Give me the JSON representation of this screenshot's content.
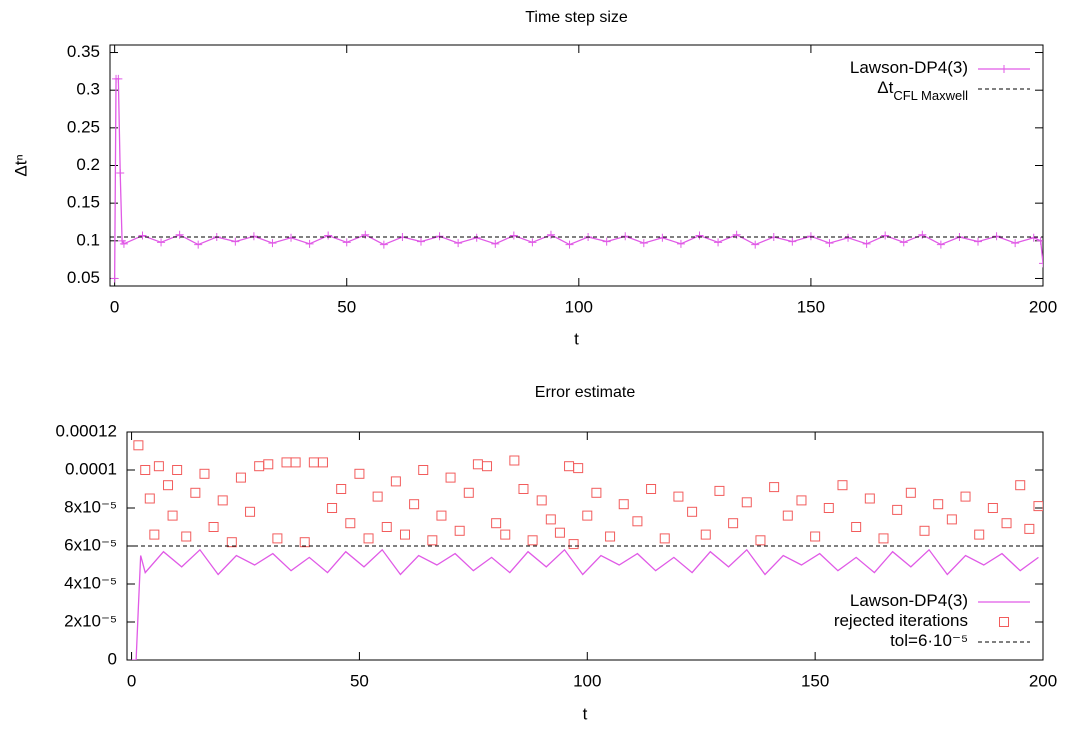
{
  "chart_data": [
    {
      "type": "line",
      "title": "Time step size",
      "xlabel": "t",
      "ylabel": "Δtⁿ",
      "xlim": [
        -1,
        200
      ],
      "ylim": [
        0.04,
        0.36
      ],
      "xticks": [
        0,
        50,
        100,
        150,
        200
      ],
      "yticks": [
        0.05,
        0.1,
        0.15,
        0.2,
        0.25,
        0.3,
        0.35
      ],
      "legend": "top-right",
      "series": [
        {
          "name": "Lawson-DP4(3)",
          "kind": "line",
          "color": "#e05ae6",
          "x": [
            0,
            0.3,
            0.8,
            1.2,
            1.6,
            2,
            6,
            10,
            14,
            18,
            22,
            26,
            30,
            34,
            38,
            42,
            46,
            50,
            54,
            58,
            62,
            66,
            70,
            74,
            78,
            82,
            86,
            90,
            94,
            98,
            102,
            106,
            110,
            114,
            118,
            122,
            126,
            130,
            134,
            138,
            142,
            146,
            150,
            154,
            158,
            162,
            166,
            170,
            174,
            178,
            182,
            186,
            190,
            194,
            198,
            199.5,
            200
          ],
          "values": [
            0.05,
            0.315,
            0.315,
            0.19,
            0.1,
            0.096,
            0.107,
            0.098,
            0.108,
            0.095,
            0.105,
            0.099,
            0.106,
            0.097,
            0.104,
            0.096,
            0.107,
            0.098,
            0.108,
            0.095,
            0.105,
            0.099,
            0.106,
            0.097,
            0.104,
            0.096,
            0.107,
            0.098,
            0.108,
            0.095,
            0.105,
            0.099,
            0.106,
            0.097,
            0.104,
            0.096,
            0.107,
            0.098,
            0.108,
            0.095,
            0.105,
            0.099,
            0.106,
            0.097,
            0.104,
            0.096,
            0.107,
            0.098,
            0.108,
            0.095,
            0.105,
            0.099,
            0.106,
            0.097,
            0.104,
            0.1,
            0.07
          ]
        },
        {
          "name": "Δt",
          "subscript": "CFL Maxwell",
          "kind": "hline",
          "color": "#000000",
          "value": 0.105
        }
      ]
    },
    {
      "type": "line",
      "title": "Error estimate",
      "xlabel": "t",
      "xlim": [
        -1,
        200
      ],
      "ylim": [
        0,
        0.00012
      ],
      "xticks": [
        0,
        50,
        100,
        150,
        200
      ],
      "yticks": [
        0,
        {
          "value": 2e-05,
          "label": "2x10⁻⁵"
        },
        {
          "value": 4e-05,
          "label": "4x10⁻⁵"
        },
        {
          "value": 6e-05,
          "label": "6x10⁻⁵"
        },
        {
          "value": 8e-05,
          "label": "8x10⁻⁵"
        },
        0.0001,
        0.00012
      ],
      "legend": "bottom-right",
      "series": [
        {
          "name": "Lawson-DP4(3)",
          "kind": "line",
          "color": "#e05ae6",
          "x": [
            0,
            1,
            1.5,
            2,
            3,
            7,
            11,
            15,
            19,
            23,
            27,
            31,
            35,
            39,
            43,
            47,
            51,
            55,
            59,
            63,
            67,
            71,
            75,
            79,
            83,
            87,
            91,
            95,
            99,
            103,
            107,
            111,
            115,
            119,
            123,
            127,
            131,
            135,
            139,
            143,
            147,
            151,
            155,
            159,
            163,
            167,
            171,
            175,
            179,
            183,
            187,
            191,
            195,
            199
          ],
          "values": [
            0,
            0,
            2.8e-05,
            5.5e-05,
            4.6e-05,
            5.7e-05,
            4.9e-05,
            5.8e-05,
            4.5e-05,
            5.5e-05,
            5e-05,
            5.6e-05,
            4.7e-05,
            5.4e-05,
            4.6e-05,
            5.7e-05,
            4.9e-05,
            5.8e-05,
            4.5e-05,
            5.5e-05,
            5e-05,
            5.6e-05,
            4.7e-05,
            5.4e-05,
            4.6e-05,
            5.7e-05,
            4.9e-05,
            5.8e-05,
            4.5e-05,
            5.5e-05,
            5e-05,
            5.6e-05,
            4.7e-05,
            5.4e-05,
            4.6e-05,
            5.7e-05,
            4.9e-05,
            5.8e-05,
            4.5e-05,
            5.5e-05,
            5e-05,
            5.6e-05,
            4.7e-05,
            5.4e-05,
            4.6e-05,
            5.7e-05,
            4.9e-05,
            5.8e-05,
            4.5e-05,
            5.5e-05,
            5e-05,
            5.6e-05,
            4.7e-05,
            5.4e-05
          ]
        },
        {
          "name": "rejected iterations",
          "kind": "scatter",
          "color": "#f25c5c",
          "x": [
            1.5,
            3,
            4,
            5,
            6,
            8,
            9,
            10,
            12,
            14,
            16,
            18,
            20,
            22,
            24,
            26,
            28,
            30,
            32,
            34,
            36,
            38,
            40,
            42,
            44,
            46,
            48,
            50,
            52,
            54,
            56,
            58,
            60,
            62,
            64,
            66,
            68,
            70,
            72,
            74,
            76,
            78,
            80,
            82,
            84,
            86,
            88,
            90,
            92,
            94,
            96,
            97,
            98,
            100,
            102,
            105,
            108,
            111,
            114,
            117,
            120,
            123,
            126,
            129,
            132,
            135,
            138,
            141,
            144,
            147,
            150,
            153,
            156,
            159,
            162,
            165,
            168,
            171,
            174,
            177,
            180,
            183,
            186,
            189,
            192,
            195,
            197,
            199
          ],
          "values": [
            0.000113,
            0.0001,
            8.5e-05,
            6.6e-05,
            0.000102,
            9.2e-05,
            7.6e-05,
            0.0001,
            6.5e-05,
            8.8e-05,
            9.8e-05,
            7e-05,
            8.4e-05,
            6.2e-05,
            9.6e-05,
            7.8e-05,
            0.000102,
            0.000103,
            6.4e-05,
            0.000104,
            0.000104,
            6.2e-05,
            0.000104,
            0.000104,
            8e-05,
            9e-05,
            7.2e-05,
            9.8e-05,
            6.4e-05,
            8.6e-05,
            7e-05,
            9.4e-05,
            6.6e-05,
            8.2e-05,
            0.0001,
            6.3e-05,
            7.6e-05,
            9.6e-05,
            6.8e-05,
            8.8e-05,
            0.000103,
            0.000102,
            7.2e-05,
            6.6e-05,
            0.000105,
            9e-05,
            6.3e-05,
            8.4e-05,
            7.4e-05,
            6.7e-05,
            0.000102,
            6.1e-05,
            0.000101,
            7.6e-05,
            8.8e-05,
            6.5e-05,
            8.2e-05,
            7.3e-05,
            9e-05,
            6.4e-05,
            8.6e-05,
            7.8e-05,
            6.6e-05,
            8.9e-05,
            7.2e-05,
            8.3e-05,
            6.3e-05,
            9.1e-05,
            7.6e-05,
            8.4e-05,
            6.5e-05,
            8e-05,
            9.2e-05,
            7e-05,
            8.5e-05,
            6.4e-05,
            7.9e-05,
            8.8e-05,
            6.8e-05,
            8.2e-05,
            7.4e-05,
            8.6e-05,
            6.6e-05,
            8e-05,
            7.2e-05,
            9.2e-05,
            6.9e-05,
            8.1e-05
          ]
        },
        {
          "name": "tol=6·10⁻⁵",
          "kind": "hline",
          "color": "#000000",
          "value": 6e-05
        }
      ]
    }
  ]
}
